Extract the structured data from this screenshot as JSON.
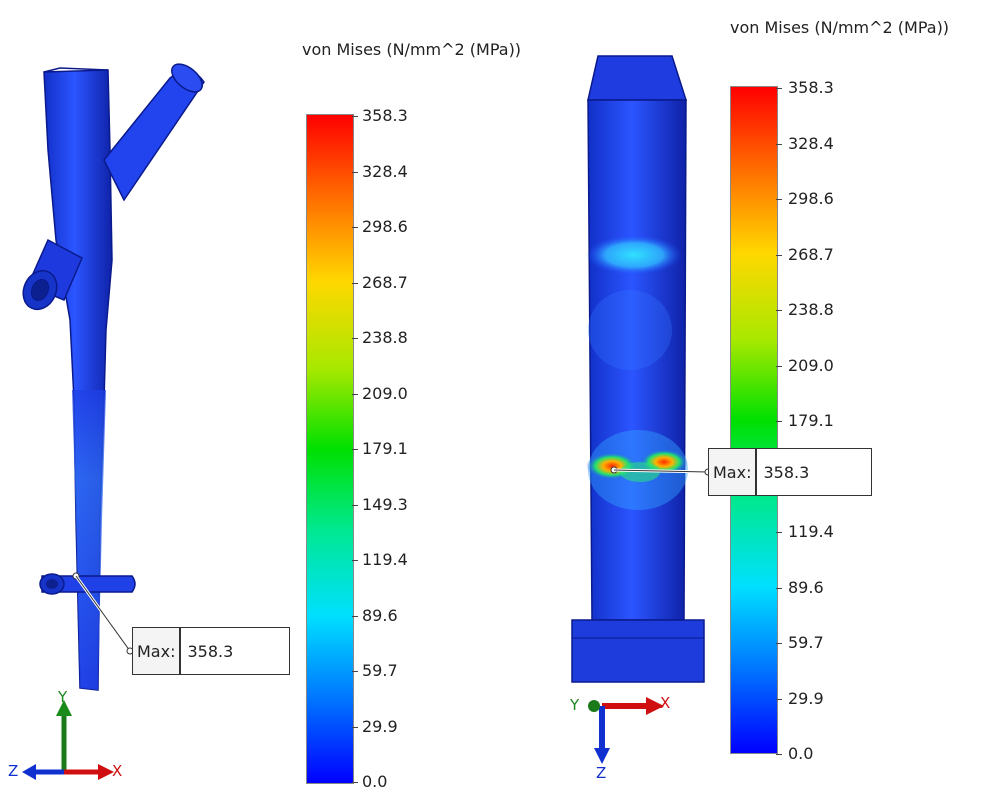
{
  "left": {
    "legend_title": "von Mises (N/mm^2 (MPa))",
    "ticks": [
      "358.3",
      "328.4",
      "298.6",
      "268.7",
      "238.8",
      "209.0",
      "179.1",
      "149.3",
      "119.4",
      "89.6",
      "59.7",
      "29.9",
      "0.0"
    ],
    "max_label": "Max:",
    "max_value": "358.3",
    "axes": {
      "y": "Y",
      "x": "X",
      "z": "Z"
    }
  },
  "right": {
    "legend_title": "von Mises (N/mm^2 (MPa))",
    "ticks": [
      "358.3",
      "328.4",
      "298.6",
      "268.7",
      "238.8",
      "209.0",
      "179.1",
      "119.4",
      "89.6",
      "59.7",
      "29.9",
      "0.0"
    ],
    "max_label": "Max:",
    "max_value": "358.3",
    "axes": {
      "y": "Y",
      "x": "X",
      "z": "Z"
    }
  },
  "colors": {
    "low": "#0000ff",
    "high": "#ff0000",
    "body_blue": "#1f3fe6"
  }
}
